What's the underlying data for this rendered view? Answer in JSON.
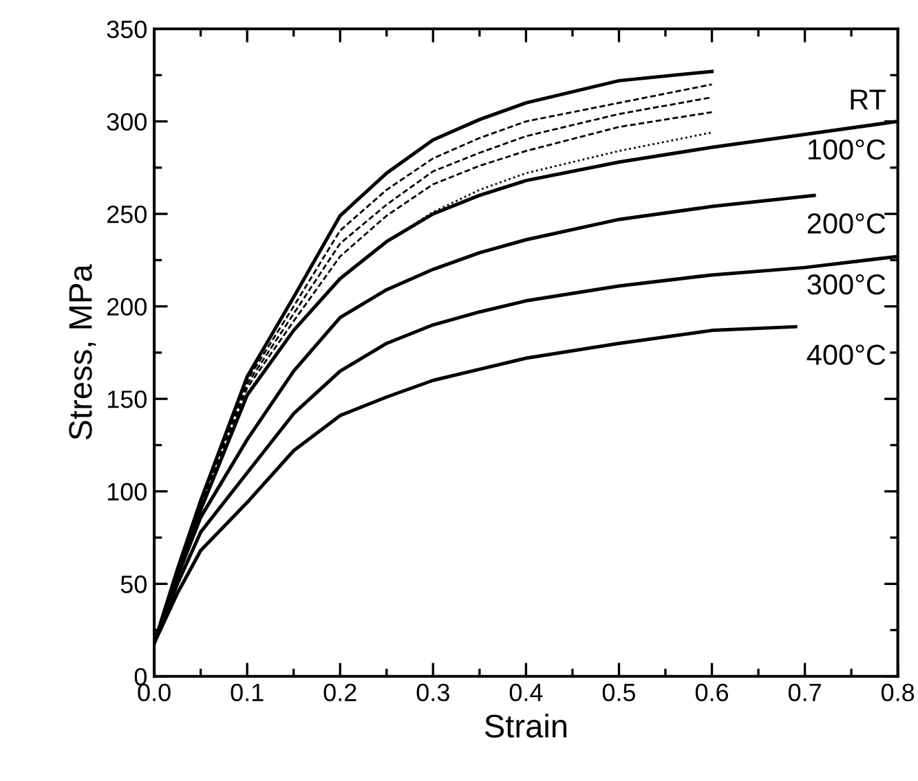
{
  "chart_data": {
    "type": "line",
    "xlabel": "Strain",
    "ylabel": "Stress, MPa",
    "xlim": [
      0,
      0.8
    ],
    "ylim": [
      0,
      350
    ],
    "xticks": [
      {
        "value": 0,
        "label": "0.0"
      },
      0.1,
      0.2,
      0.3,
      0.4,
      0.5,
      0.6,
      0.7,
      0.8
    ],
    "yticks": [
      0,
      50,
      100,
      150,
      200,
      250,
      300,
      350
    ],
    "grid": false,
    "legend": "right",
    "marker": "none",
    "series": [
      {
        "name": "RT",
        "color": "#000000",
        "line_style": "solid",
        "x": [
          0,
          0.025,
          0.05,
          0.1,
          0.15,
          0.2,
          0.25,
          0.3,
          0.35,
          0.4,
          0.5,
          0.6
        ],
        "values": [
          18,
          58,
          95,
          162,
          205,
          249,
          272,
          290,
          301,
          310,
          322,
          327
        ]
      },
      {
        "color": "#000000",
        "line_style": "dashed",
        "x": [
          0,
          0.025,
          0.05,
          0.1,
          0.15,
          0.2,
          0.25,
          0.3,
          0.35,
          0.4,
          0.5,
          0.6
        ],
        "values": [
          18,
          57,
          94,
          160,
          200,
          241,
          263,
          280,
          291,
          300,
          310,
          320
        ]
      },
      {
        "color": "#000000",
        "line_style": "dashed",
        "x": [
          0,
          0.025,
          0.05,
          0.1,
          0.15,
          0.2,
          0.25,
          0.3,
          0.35,
          0.4,
          0.5,
          0.6
        ],
        "values": [
          18,
          57,
          93,
          158,
          196,
          234,
          255,
          273,
          283,
          292,
          304,
          313
        ]
      },
      {
        "color": "#000000",
        "line_style": "dashed",
        "x": [
          0,
          0.025,
          0.05,
          0.1,
          0.15,
          0.2,
          0.25,
          0.3,
          0.35,
          0.4,
          0.5,
          0.6
        ],
        "values": [
          18,
          56,
          92,
          156,
          192,
          227,
          249,
          266,
          276,
          284,
          297,
          305
        ]
      },
      {
        "color": "#000000",
        "line_style": "dotted",
        "x": [
          0,
          0.025,
          0.05,
          0.1,
          0.15,
          0.2,
          0.25,
          0.3,
          0.35,
          0.4,
          0.5,
          0.6
        ],
        "values": [
          18,
          55,
          90,
          153,
          187,
          215,
          235,
          251,
          263,
          272,
          284,
          294
        ]
      },
      {
        "name": "100°C",
        "color": "#000000",
        "line_style": "solid",
        "x": [
          0,
          0.025,
          0.05,
          0.1,
          0.15,
          0.2,
          0.25,
          0.3,
          0.35,
          0.4,
          0.5,
          0.6,
          0.7,
          0.8
        ],
        "values": [
          18,
          55,
          90,
          152,
          187,
          215,
          235,
          250,
          260,
          268,
          278,
          286,
          293,
          300
        ]
      },
      {
        "name": "200°C",
        "color": "#000000",
        "line_style": "solid",
        "x": [
          0,
          0.025,
          0.05,
          0.1,
          0.15,
          0.2,
          0.25,
          0.3,
          0.35,
          0.4,
          0.5,
          0.6,
          0.71
        ],
        "values": [
          18,
          54,
          86,
          128,
          165,
          194,
          209,
          220,
          229,
          236,
          247,
          254,
          260
        ]
      },
      {
        "name": "300°C",
        "color": "#000000",
        "line_style": "solid",
        "x": [
          0,
          0.025,
          0.05,
          0.1,
          0.15,
          0.2,
          0.25,
          0.3,
          0.35,
          0.4,
          0.5,
          0.6,
          0.7,
          0.8
        ],
        "values": [
          18,
          50,
          78,
          110,
          142,
          165,
          180,
          190,
          197,
          203,
          211,
          217,
          221,
          227
        ]
      },
      {
        "name": "400°C",
        "color": "#000000",
        "line_style": "solid",
        "x": [
          0,
          0.025,
          0.05,
          0.1,
          0.15,
          0.2,
          0.25,
          0.3,
          0.35,
          0.4,
          0.5,
          0.6,
          0.69
        ],
        "values": [
          18,
          45,
          68,
          94,
          122,
          141,
          151,
          160,
          166,
          172,
          180,
          187,
          189
        ]
      }
    ]
  }
}
